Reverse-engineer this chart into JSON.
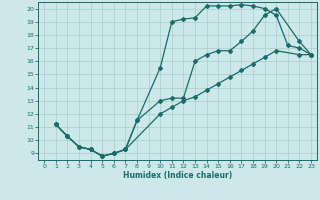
{
  "xlabel": "Humidex (Indice chaleur)",
  "bg_color": "#cce8e8",
  "line_color": "#1a6b6b",
  "grid_color": "#aacccc",
  "xlim": [
    -0.5,
    23.5
  ],
  "ylim": [
    8.5,
    20.5
  ],
  "yticks": [
    9,
    10,
    11,
    12,
    13,
    14,
    15,
    16,
    17,
    18,
    19,
    20
  ],
  "xticks": [
    0,
    1,
    2,
    3,
    4,
    5,
    6,
    7,
    8,
    9,
    10,
    11,
    12,
    13,
    14,
    15,
    16,
    17,
    18,
    19,
    20,
    21,
    22,
    23
  ],
  "line1_x": [
    1,
    2,
    3,
    4,
    5,
    6,
    7,
    8,
    10,
    11,
    12,
    13,
    14,
    15,
    16,
    17,
    18,
    19,
    20,
    21,
    22,
    23
  ],
  "line1_y": [
    11.2,
    10.3,
    9.5,
    9.3,
    8.8,
    9.0,
    9.3,
    11.5,
    15.5,
    19.0,
    19.2,
    19.3,
    20.2,
    20.2,
    20.2,
    20.3,
    20.2,
    20.0,
    19.5,
    17.2,
    17.0,
    16.5
  ],
  "line2_x": [
    1,
    2,
    3,
    4,
    5,
    6,
    7,
    8,
    10,
    11,
    12,
    13,
    14,
    15,
    16,
    17,
    18,
    19,
    20,
    22,
    23
  ],
  "line2_y": [
    11.2,
    10.3,
    9.5,
    9.3,
    8.8,
    9.0,
    9.3,
    11.5,
    13.0,
    13.2,
    13.2,
    16.0,
    16.5,
    16.8,
    16.8,
    17.5,
    18.3,
    19.5,
    20.0,
    17.5,
    16.5
  ],
  "line3_x": [
    1,
    2,
    3,
    4,
    5,
    6,
    7,
    10,
    11,
    12,
    13,
    14,
    15,
    16,
    17,
    18,
    19,
    20,
    22,
    23
  ],
  "line3_y": [
    11.2,
    10.3,
    9.5,
    9.3,
    8.8,
    9.0,
    9.3,
    12.0,
    12.5,
    13.0,
    13.3,
    13.8,
    14.3,
    14.8,
    15.3,
    15.8,
    16.3,
    16.8,
    16.5,
    16.5
  ]
}
